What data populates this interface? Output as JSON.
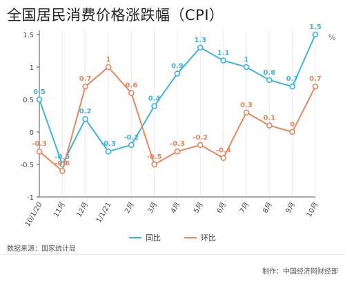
{
  "title": "全国居民消费价格涨跌幅（CPI）",
  "unit": "%",
  "source": "数据来源：国家统计局",
  "credit": "制作：中国经济网财经部",
  "colors": {
    "yoy": "#3db3e6",
    "mom": "#f0845a",
    "grid": "#e8e8e8",
    "axis": "#555555"
  },
  "chart_data": {
    "type": "line",
    "categories": [
      "10/1/20",
      "11月",
      "12月",
      "1/1/21",
      "2月",
      "3月",
      "4月",
      "5月",
      "6月",
      "7月",
      "8月",
      "9月",
      "10月"
    ],
    "series": [
      {
        "name": "同比",
        "values": [
          0.5,
          -0.5,
          0.2,
          -0.3,
          -0.2,
          0.4,
          0.9,
          1.3,
          1.1,
          1,
          0.8,
          0.7,
          1.5
        ]
      },
      {
        "name": "环比",
        "values": [
          -0.3,
          -0.6,
          0.7,
          1,
          0.6,
          -0.5,
          -0.3,
          -0.2,
          -0.4,
          0.3,
          0.1,
          0,
          0.7
        ]
      }
    ],
    "yticks": [
      "-1",
      "-0.5",
      "0",
      "0.5",
      "1",
      "1.5"
    ],
    "ylim": [
      -1,
      1.5
    ],
    "xlabel": "",
    "ylabel": "%",
    "grid": "vertical",
    "legend": "bottom-center"
  }
}
